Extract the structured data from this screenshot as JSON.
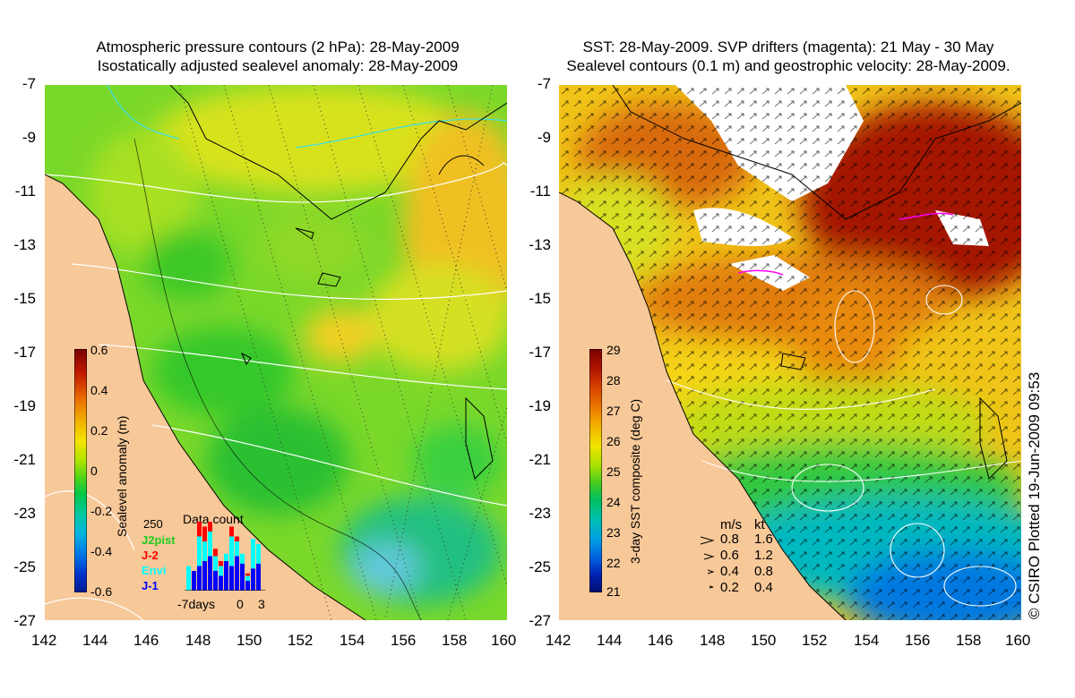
{
  "left_panel": {
    "title_line1": "Atmospheric pressure contours (2 hPa): 28-May-2009",
    "title_line2": "Isostatically adjusted sealevel anomaly: 28-May-2009",
    "colorbar": {
      "label": "Sealevel anomaly (m)",
      "ticks": [
        "0.6",
        "0.4",
        "0.2",
        "0",
        "-0.2",
        "-0.4",
        "-0.6"
      ],
      "colors": [
        "#7a0000",
        "#c21a00",
        "#e86a00",
        "#f2b400",
        "#f4e400",
        "#aee400",
        "#4fd21a",
        "#00c84a",
        "#00c8a0",
        "#00b4e0",
        "#0072e6",
        "#0030c8",
        "#001c8c"
      ]
    },
    "data_count": {
      "title": "Data count",
      "max_label": "250",
      "x_label_left": "-7days",
      "x_label_mid": "0",
      "x_label_right": "3",
      "legend": [
        {
          "label": "J2pist",
          "color": "#22cc22"
        },
        {
          "label": "J-2",
          "color": "#ff0000"
        },
        {
          "label": "Envi",
          "color": "#00ffff"
        },
        {
          "label": "J-1",
          "color": "#0000ff"
        }
      ]
    }
  },
  "right_panel": {
    "title_line1": "SST: 28-May-2009. SVP drifters (magenta): 21 May - 30 May",
    "title_line2": "Sealevel contours (0.1 m) and geostrophic velocity: 28-May-2009.",
    "colorbar": {
      "label": "3-day SST composite (deg C)",
      "ticks": [
        "29",
        "28",
        "27",
        "26",
        "25",
        "24",
        "23",
        "22",
        "21"
      ],
      "colors": [
        "#7a0000",
        "#b01400",
        "#d84400",
        "#ee8000",
        "#f2b400",
        "#f0e400",
        "#a8e000",
        "#46cc1e",
        "#00c060",
        "#00c0b0",
        "#00a0e0",
        "#0060e0",
        "#0020b0",
        "#001070"
      ]
    },
    "velocity_key": {
      "header_ms": "m/s",
      "header_kt": "kt",
      "rows": [
        {
          "ms": "0.8",
          "kt": "1.6"
        },
        {
          "ms": "0.6",
          "kt": "1.2"
        },
        {
          "ms": "0.4",
          "kt": "0.8"
        },
        {
          "ms": "0.2",
          "kt": "0.4"
        }
      ]
    }
  },
  "axes": {
    "y_ticks": [
      "-7",
      "-9",
      "-11",
      "-13",
      "-15",
      "-17",
      "-19",
      "-21",
      "-23",
      "-25",
      "-27"
    ],
    "x_ticks": [
      "142",
      "144",
      "146",
      "148",
      "150",
      "152",
      "154",
      "156",
      "158",
      "160"
    ]
  },
  "credit": "© CSIRO Plotted 19-Jun-2009 09:53",
  "colors": {
    "land": "#f7c898",
    "coast": "#000000"
  }
}
